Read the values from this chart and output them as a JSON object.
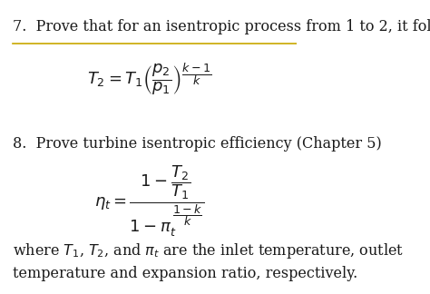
{
  "background_color": "#ffffff",
  "title7": "7.  Prove that for an isentropic process from 1 to 2, it follows",
  "title8": "8.  Prove turbine isentropic efficiency (Chapter 5)",
  "footer": "where $T_1$, $T_2$, and $\\pi_t$ are the inlet temperature, outlet\ntemperature and expansion ratio, respectively.",
  "eq1": "$T_2 = T_1\\left(\\dfrac{p_2}{p_1}\\right)^{\\dfrac{k-1}{k}}$",
  "eq2": "$\\eta_t = \\dfrac{1 - \\dfrac{T_2}{T_1}}{1 - \\pi_t^{\\,\\dfrac{1-k}{k}}}$",
  "font_size_heading": 11.5,
  "font_size_eq": 13,
  "font_size_footer": 11.5,
  "text_color": "#1a1a1a"
}
